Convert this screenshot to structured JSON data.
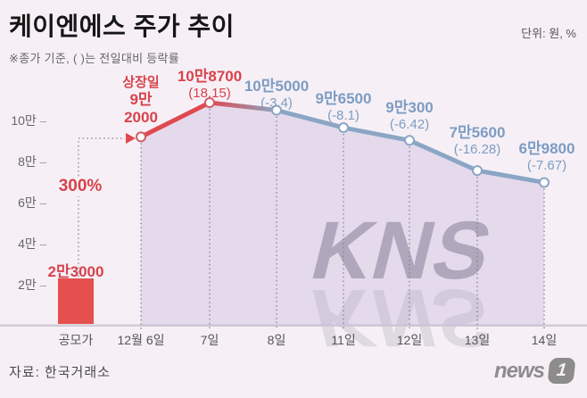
{
  "title": "케이엔에스 주가 추이",
  "unit_label": "단위: 원, %",
  "subtitle": "※종가 기준, ( )는 전일대비 등락률",
  "source": "자료: 한국거래소",
  "watermark": {
    "text": "KNS"
  },
  "logo": {
    "news_text": "news",
    "one_text": "1"
  },
  "colors": {
    "bg": "#f6f0f6",
    "red_line": "#e0494f",
    "red_text": "#d8434b",
    "blue_line": "#8ba6c4",
    "blue_text": "#7d9cc2",
    "bar": "#e5504f",
    "area": "rgba(190,170,215,0.32)",
    "dotted": "#807c88",
    "axis": "#d2ccd8"
  },
  "chart_data": {
    "type": "line",
    "title": "케이엔에스 주가 추이",
    "unit": "원, %",
    "note": "※종가 기준, ( )는 전일대비 등락률",
    "x_labels": [
      "공모가",
      "12월 6일",
      "7일",
      "8일",
      "11일",
      "12일",
      "13일",
      "14일"
    ],
    "y_axis": {
      "tick_labels": [
        "10만",
        "8만",
        "6만",
        "4만",
        "2만"
      ],
      "tick_values": [
        100000,
        80000,
        60000,
        40000,
        20000
      ],
      "min": 0,
      "max": 110000
    },
    "bar": {
      "category": "공모가",
      "value": 23000,
      "display": "2만3000"
    },
    "annotation": {
      "text": "300%"
    },
    "points": [
      {
        "date": "12월 6일",
        "value": 92000,
        "caption": "상장일",
        "display_lines": [
          "9만",
          "2000"
        ],
        "change": "",
        "color": "red"
      },
      {
        "date": "7일",
        "value": 108700,
        "display": "10만8700",
        "change": "(18.15)",
        "color": "red"
      },
      {
        "date": "8일",
        "value": 105000,
        "display": "10만5000",
        "change": "(-3.4)",
        "color": "blue"
      },
      {
        "date": "11일",
        "value": 96500,
        "display": "9만6500",
        "change": "(-8.1)",
        "color": "blue"
      },
      {
        "date": "12일",
        "value": 90300,
        "display": "9만300",
        "change": "(-6.42)",
        "color": "blue"
      },
      {
        "date": "13일",
        "value": 75600,
        "display": "7만5600",
        "change": "(-16.28)",
        "color": "blue"
      },
      {
        "date": "14일",
        "value": 69800,
        "display": "6만9800",
        "change": "(-7.67)",
        "color": "blue"
      }
    ]
  }
}
